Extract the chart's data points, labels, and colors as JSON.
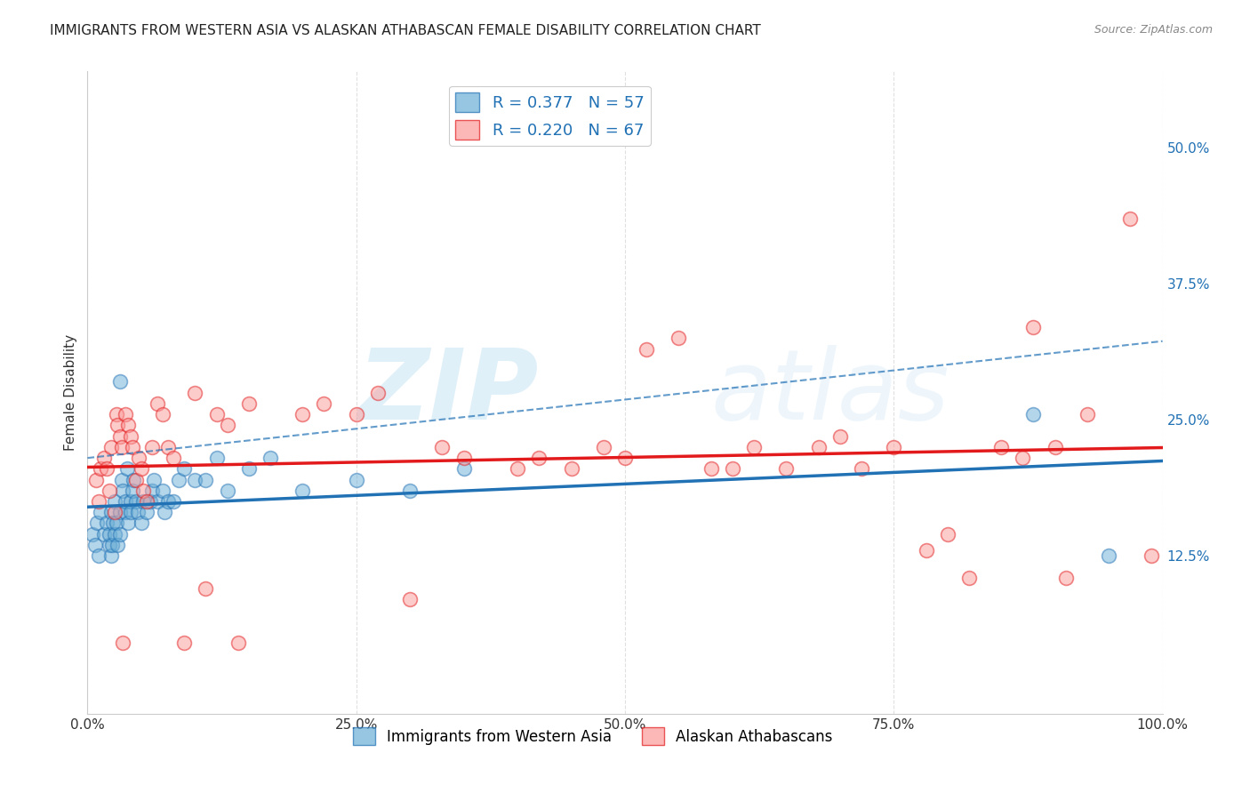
{
  "title": "IMMIGRANTS FROM WESTERN ASIA VS ALASKAN ATHABASCAN FEMALE DISABILITY CORRELATION CHART",
  "source": "Source: ZipAtlas.com",
  "xlabel": "",
  "ylabel": "Female Disability",
  "R_blue": 0.377,
  "N_blue": 57,
  "R_pink": 0.22,
  "N_pink": 67,
  "blue_color": "#6baed6",
  "blue_line_color": "#2171b5",
  "pink_color": "#fb9a99",
  "pink_line_color": "#e31a1c",
  "background_color": "#ffffff",
  "grid_color": "#dddddd",
  "xlim": [
    0,
    1.0
  ],
  "ylim": [
    -0.02,
    0.57
  ],
  "xticks": [
    0.0,
    0.25,
    0.5,
    0.75,
    1.0
  ],
  "xtick_labels": [
    "0.0%",
    "25.0%",
    "50.0%",
    "75.0%",
    "100.0%"
  ],
  "yticks": [
    0.125,
    0.25,
    0.375,
    0.5
  ],
  "ytick_labels": [
    "12.5%",
    "25.0%",
    "37.5%",
    "50.0%"
  ],
  "blue_scatter_x": [
    0.005,
    0.007,
    0.009,
    0.01,
    0.012,
    0.015,
    0.018,
    0.02,
    0.02,
    0.022,
    0.022,
    0.023,
    0.024,
    0.025,
    0.025,
    0.027,
    0.028,
    0.03,
    0.03,
    0.03,
    0.032,
    0.033,
    0.035,
    0.035,
    0.037,
    0.038,
    0.04,
    0.04,
    0.042,
    0.043,
    0.045,
    0.047,
    0.05,
    0.052,
    0.055,
    0.058,
    0.06,
    0.062,
    0.065,
    0.07,
    0.072,
    0.075,
    0.08,
    0.085,
    0.09,
    0.1,
    0.11,
    0.12,
    0.13,
    0.15,
    0.17,
    0.2,
    0.25,
    0.3,
    0.35,
    0.88,
    0.95
  ],
  "blue_scatter_y": [
    0.145,
    0.135,
    0.155,
    0.125,
    0.165,
    0.145,
    0.155,
    0.135,
    0.145,
    0.125,
    0.165,
    0.135,
    0.155,
    0.175,
    0.145,
    0.155,
    0.135,
    0.165,
    0.285,
    0.145,
    0.195,
    0.185,
    0.165,
    0.175,
    0.205,
    0.155,
    0.175,
    0.165,
    0.185,
    0.195,
    0.175,
    0.165,
    0.155,
    0.175,
    0.165,
    0.175,
    0.185,
    0.195,
    0.175,
    0.185,
    0.165,
    0.175,
    0.175,
    0.195,
    0.205,
    0.195,
    0.195,
    0.215,
    0.185,
    0.205,
    0.215,
    0.185,
    0.195,
    0.185,
    0.205,
    0.255,
    0.125
  ],
  "pink_scatter_x": [
    0.008,
    0.01,
    0.012,
    0.015,
    0.018,
    0.02,
    0.022,
    0.025,
    0.027,
    0.028,
    0.03,
    0.032,
    0.033,
    0.035,
    0.038,
    0.04,
    0.042,
    0.045,
    0.048,
    0.05,
    0.052,
    0.055,
    0.06,
    0.065,
    0.07,
    0.075,
    0.08,
    0.09,
    0.1,
    0.11,
    0.12,
    0.13,
    0.14,
    0.15,
    0.2,
    0.22,
    0.25,
    0.27,
    0.3,
    0.33,
    0.35,
    0.4,
    0.42,
    0.45,
    0.48,
    0.5,
    0.52,
    0.55,
    0.58,
    0.6,
    0.62,
    0.65,
    0.68,
    0.7,
    0.72,
    0.75,
    0.78,
    0.8,
    0.82,
    0.85,
    0.87,
    0.88,
    0.9,
    0.91,
    0.93,
    0.97,
    0.99
  ],
  "pink_scatter_y": [
    0.195,
    0.175,
    0.205,
    0.215,
    0.205,
    0.185,
    0.225,
    0.165,
    0.255,
    0.245,
    0.235,
    0.225,
    0.045,
    0.255,
    0.245,
    0.235,
    0.225,
    0.195,
    0.215,
    0.205,
    0.185,
    0.175,
    0.225,
    0.265,
    0.255,
    0.225,
    0.215,
    0.045,
    0.275,
    0.095,
    0.255,
    0.245,
    0.045,
    0.265,
    0.255,
    0.265,
    0.255,
    0.275,
    0.085,
    0.225,
    0.215,
    0.205,
    0.215,
    0.205,
    0.225,
    0.215,
    0.315,
    0.325,
    0.205,
    0.205,
    0.225,
    0.205,
    0.225,
    0.235,
    0.205,
    0.225,
    0.13,
    0.145,
    0.105,
    0.225,
    0.215,
    0.335,
    0.225,
    0.105,
    0.255,
    0.435,
    0.125
  ],
  "watermark_zip": "ZIP",
  "watermark_atlas": "atlas",
  "title_fontsize": 11,
  "axis_label_fontsize": 11,
  "tick_fontsize": 11
}
